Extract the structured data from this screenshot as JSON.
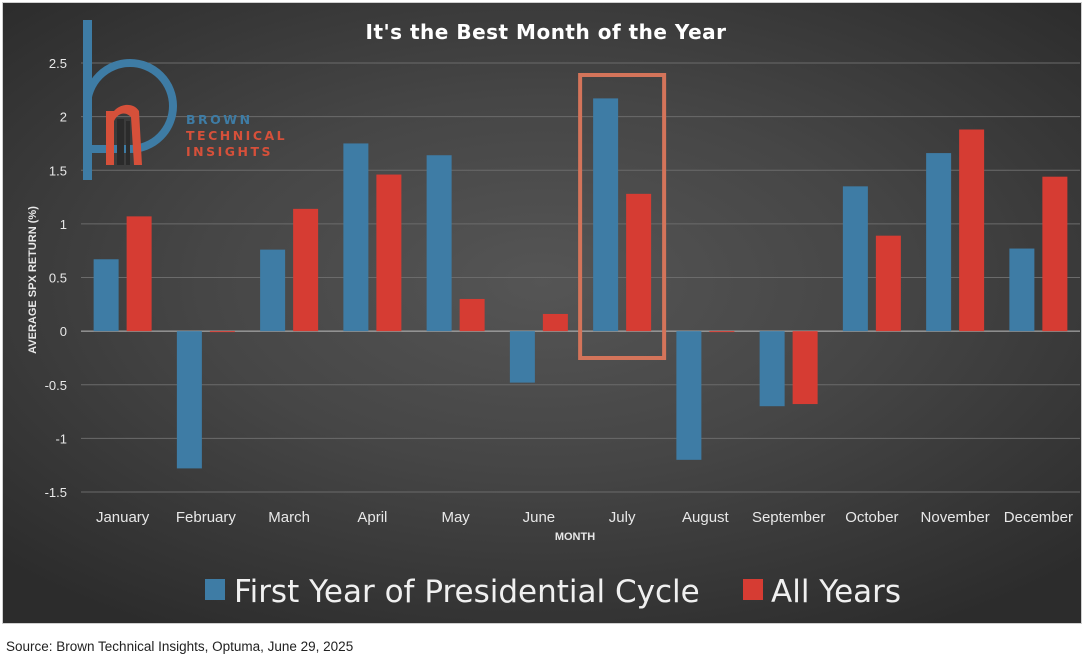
{
  "chart_data": {
    "type": "bar",
    "title": "It's the Best Month of the Year",
    "xlabel": "MONTH",
    "ylabel": "AVERAGE SPX RETURN (%)",
    "ylim": [
      -1.5,
      2.5
    ],
    "yticks": [
      "2.5",
      "2",
      "1.5",
      "1",
      "0.5",
      "0",
      "-0.5",
      "-1",
      "-1.5"
    ],
    "ytick_values": [
      2.5,
      2,
      1.5,
      1,
      0.5,
      0,
      -0.5,
      -1,
      -1.5
    ],
    "grid": true,
    "legend_position": "bottom",
    "categories": [
      "January",
      "February",
      "March",
      "April",
      "May",
      "June",
      "July",
      "August",
      "September",
      "October",
      "November",
      "December"
    ],
    "series": [
      {
        "name": "First Year of Presidential Cycle",
        "color": "#3e7ca5",
        "values": [
          0.67,
          -1.28,
          0.76,
          1.75,
          1.64,
          -0.48,
          2.17,
          -1.2,
          -0.7,
          1.35,
          1.66,
          0.77
        ]
      },
      {
        "name": "All Years",
        "color": "#d63c33",
        "values": [
          1.07,
          0.0,
          1.14,
          1.46,
          0.3,
          0.16,
          1.28,
          0.0,
          -0.68,
          0.89,
          1.88,
          1.44
        ]
      }
    ],
    "highlight": {
      "category": "July",
      "color": "#d4745a"
    }
  },
  "logo": {
    "line1": "BROWN",
    "line2": "TECHNICAL",
    "line3": "INSIGHTS",
    "blue": "#3e7ca5",
    "red": "#d6503a"
  },
  "source": "Source: Brown Technical Insights, Optuma, June 29, 2025"
}
